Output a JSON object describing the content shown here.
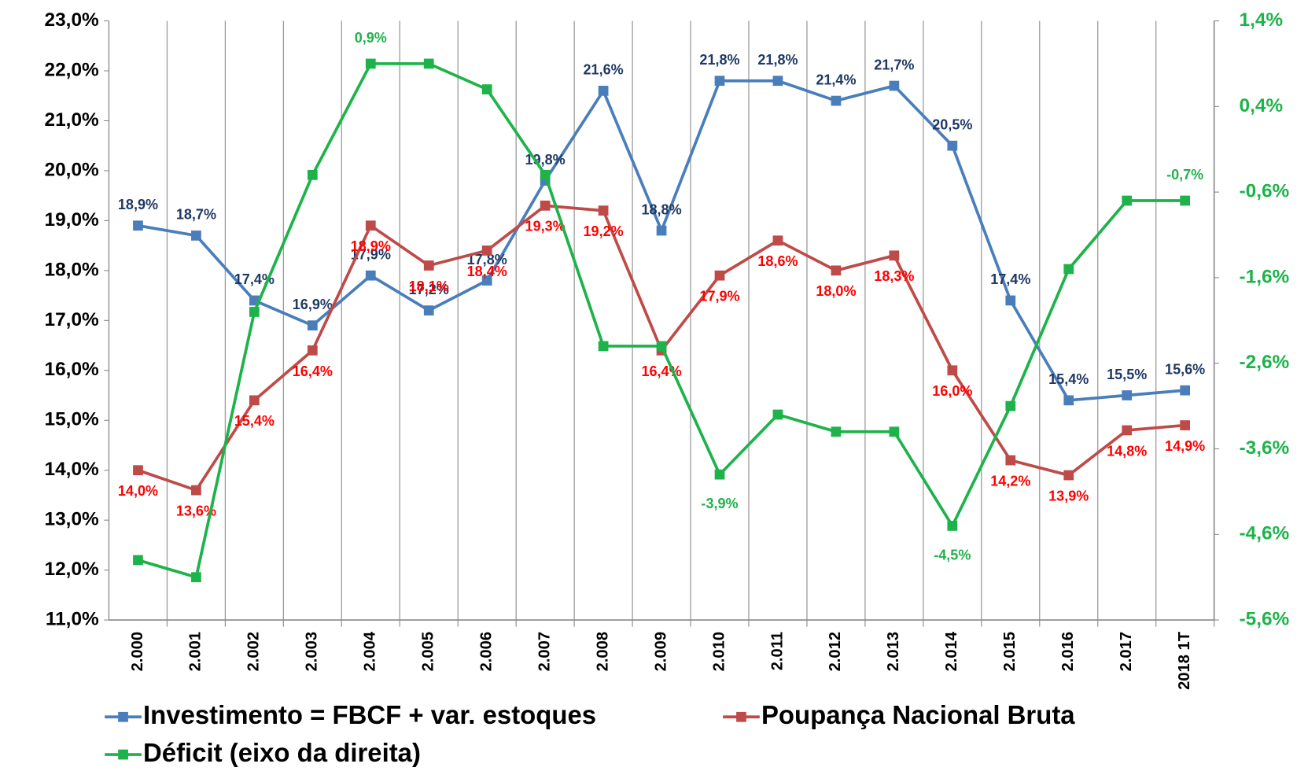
{
  "chart_data": {
    "type": "line",
    "categories": [
      "2.000",
      "2.001",
      "2.002",
      "2.003",
      "2.004",
      "2.005",
      "2.006",
      "2.007",
      "2.008",
      "2.009",
      "2.010",
      "2.011",
      "2.012",
      "2.013",
      "2.014",
      "2.015",
      "2.016",
      "2.017",
      "2018 1T"
    ],
    "series": [
      {
        "name": "Investimento = FBCF + var. estoques",
        "color": "#4a7ebb",
        "label_color": "#1f3864",
        "values": [
          18.9,
          18.7,
          17.4,
          16.9,
          17.9,
          17.2,
          17.8,
          19.8,
          21.6,
          18.8,
          21.8,
          21.8,
          21.4,
          21.7,
          20.5,
          17.4,
          15.4,
          15.5,
          15.6
        ],
        "value_labels": [
          "18,9%",
          "18,7%",
          "17,4%",
          "16,9%",
          "17,9%",
          "17,2%",
          "17,8%",
          "19,8%",
          "21,6%",
          "18,8%",
          "21,8%",
          "21,8%",
          "21,4%",
          "21,7%",
          "20,5%",
          "17,4%",
          "15,4%",
          "15,5%",
          "15,6%"
        ]
      },
      {
        "name": "Poupança Nacional Bruta",
        "color": "#be4b48",
        "label_color": "#ff0000",
        "values": [
          14.0,
          13.6,
          15.4,
          16.4,
          18.9,
          18.1,
          18.4,
          19.3,
          19.2,
          16.4,
          17.9,
          18.6,
          18.0,
          18.3,
          16.0,
          14.2,
          13.9,
          14.8,
          14.9
        ],
        "value_labels": [
          "14,0%",
          "13,6%",
          "15,4%",
          "16,4%",
          "18,9%",
          "18,1%",
          "18,4%",
          "19,3%",
          "19,2%",
          "16,4%",
          "17,9%",
          "18,6%",
          "18,0%",
          "18,3%",
          "16,0%",
          "14,2%",
          "13,9%",
          "14,8%",
          "14,9%"
        ]
      },
      {
        "name": "Déficit (eixo da direita)",
        "color": "#1db34a",
        "label_color": "#22b14c",
        "axis": "y2",
        "values": [
          -4.9,
          -5.1,
          -2.0,
          -0.4,
          0.9,
          0.9,
          0.6,
          -0.4,
          -2.4,
          -2.4,
          -3.9,
          -3.2,
          -3.4,
          -3.4,
          -4.5,
          -3.1,
          -1.5,
          -0.7,
          -0.7
        ],
        "value_labels": [
          null,
          null,
          null,
          null,
          "0,9%",
          null,
          null,
          null,
          null,
          null,
          "-3,9%",
          null,
          null,
          null,
          "-4,5%",
          null,
          null,
          null,
          "-0,7%"
        ]
      }
    ],
    "ylim": [
      11,
      23
    ],
    "yticks": [
      {
        "value": 11,
        "label": "11,0%"
      },
      {
        "value": 12,
        "label": "12,0%"
      },
      {
        "value": 13,
        "label": "13,0%"
      },
      {
        "value": 14,
        "label": "14,0%"
      },
      {
        "value": 15,
        "label": "15,0%"
      },
      {
        "value": 16,
        "label": "16,0%"
      },
      {
        "value": 17,
        "label": "17,0%"
      },
      {
        "value": 18,
        "label": "18,0%"
      },
      {
        "value": 19,
        "label": "19,0%"
      },
      {
        "value": 20,
        "label": "20,0%"
      },
      {
        "value": 21,
        "label": "21,0%"
      },
      {
        "value": 22,
        "label": "22,0%"
      },
      {
        "value": 23,
        "label": "23,0%"
      }
    ],
    "y2lim": [
      -5.6,
      1.4
    ],
    "y2ticks": [
      {
        "value": 1.4,
        "label": "1,4%"
      },
      {
        "value": 0.4,
        "label": "0,4%"
      },
      {
        "value": -0.6,
        "label": "-0,6%"
      },
      {
        "value": -1.6,
        "label": "-1,6%"
      },
      {
        "value": -2.6,
        "label": "-2,6%"
      },
      {
        "value": -3.6,
        "label": "-3,6%"
      },
      {
        "value": -4.6,
        "label": "-4,6%"
      },
      {
        "value": -5.6,
        "label": "-5,6%"
      }
    ],
    "y2_color": "#1db34a"
  }
}
